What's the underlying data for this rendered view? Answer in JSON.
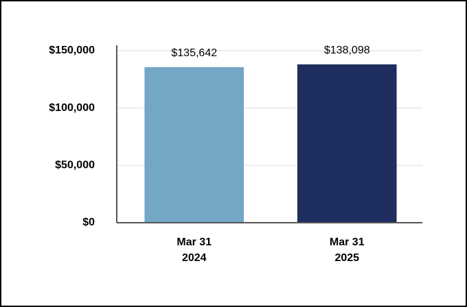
{
  "chart_data": {
    "type": "bar",
    "categories": [
      [
        "Mar 31",
        "2024"
      ],
      [
        "Mar 31",
        "2025"
      ]
    ],
    "values": [
      135642,
      138098
    ],
    "value_labels": [
      "$135,642",
      "$138,098"
    ],
    "colors": [
      "#74a6c6",
      "#1e2e5e"
    ],
    "ylim": [
      0,
      150000
    ],
    "yticks": [
      {
        "value": 0,
        "label": "$0"
      },
      {
        "value": 50000,
        "label": "$50,000"
      },
      {
        "value": 100000,
        "label": "$100,000"
      },
      {
        "value": 150000,
        "label": "$150,000"
      }
    ],
    "grid": true
  }
}
